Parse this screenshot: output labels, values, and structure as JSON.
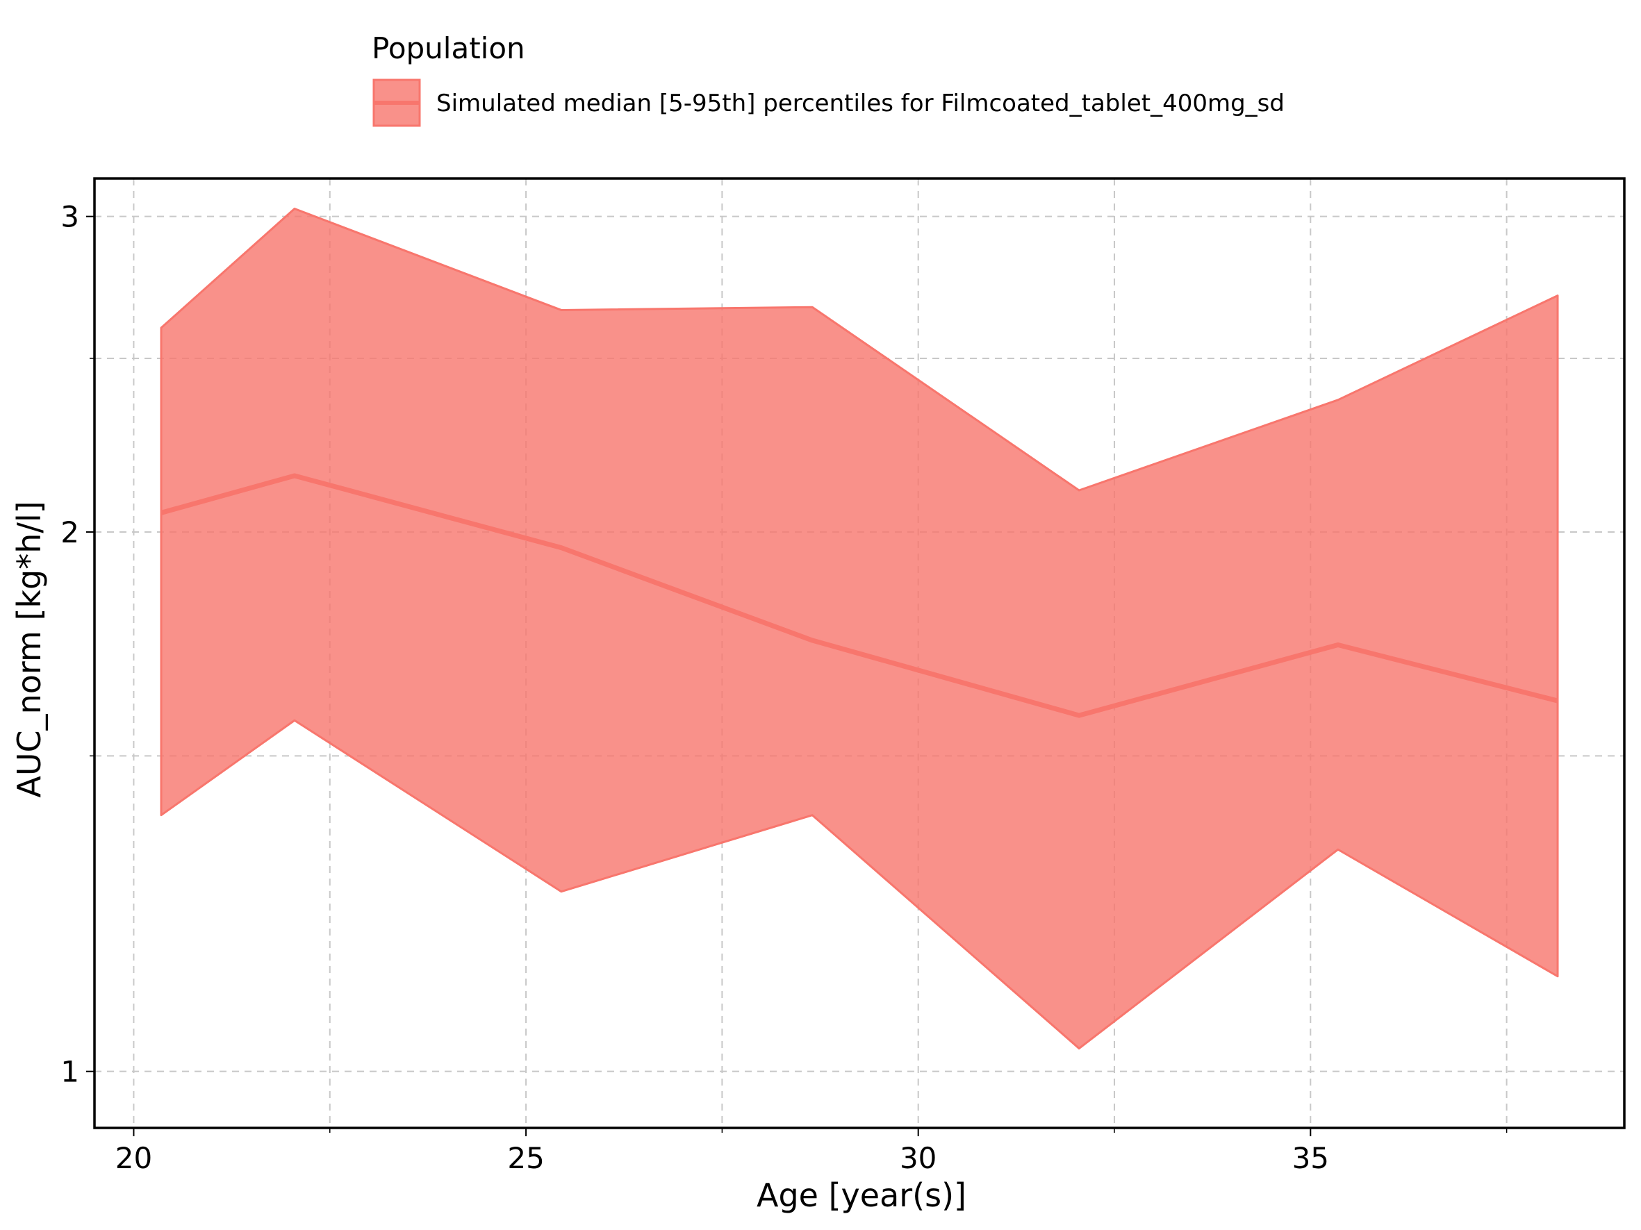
{
  "chart_data": {
    "type": "area",
    "xlabel": "Age [year(s)]",
    "ylabel": "AUC_norm [kg*h/l]",
    "xlim": [
      19.5,
      39.0
    ],
    "ylim": [
      0.93,
      3.15
    ],
    "y_scale": "log",
    "grid": true,
    "x_ticks": [
      20,
      25,
      30,
      35
    ],
    "x_tick_labels": [
      "20",
      "25",
      "30",
      "35"
    ],
    "x_minor_gridlines": [
      22.5,
      27.5,
      32.5,
      37.5
    ],
    "y_ticks": [
      1,
      2,
      3
    ],
    "y_tick_labels": [
      "1",
      "2",
      "3"
    ],
    "y_minor_gridlines": [
      1.5,
      2.5
    ],
    "legend": {
      "title": "Population",
      "position": "top",
      "entries": [
        {
          "label": "Simulated median [5-95th] percentiles for Filmcoated_tablet_400mg_sd",
          "color": "#f8766d"
        }
      ]
    },
    "series": [
      {
        "x": [
          20.35,
          22.05,
          25.45,
          28.65,
          32.05,
          35.35,
          38.15
        ],
        "median": [
          2.05,
          2.15,
          1.96,
          1.74,
          1.58,
          1.73,
          1.61
        ],
        "lower": [
          1.39,
          1.57,
          1.26,
          1.39,
          1.03,
          1.33,
          1.13
        ],
        "upper": [
          2.6,
          3.03,
          2.66,
          2.67,
          2.11,
          2.37,
          2.71
        ],
        "fill_color": "#f8766d",
        "fill_opacity": 0.8,
        "line_color": "#f8766d"
      }
    ]
  }
}
